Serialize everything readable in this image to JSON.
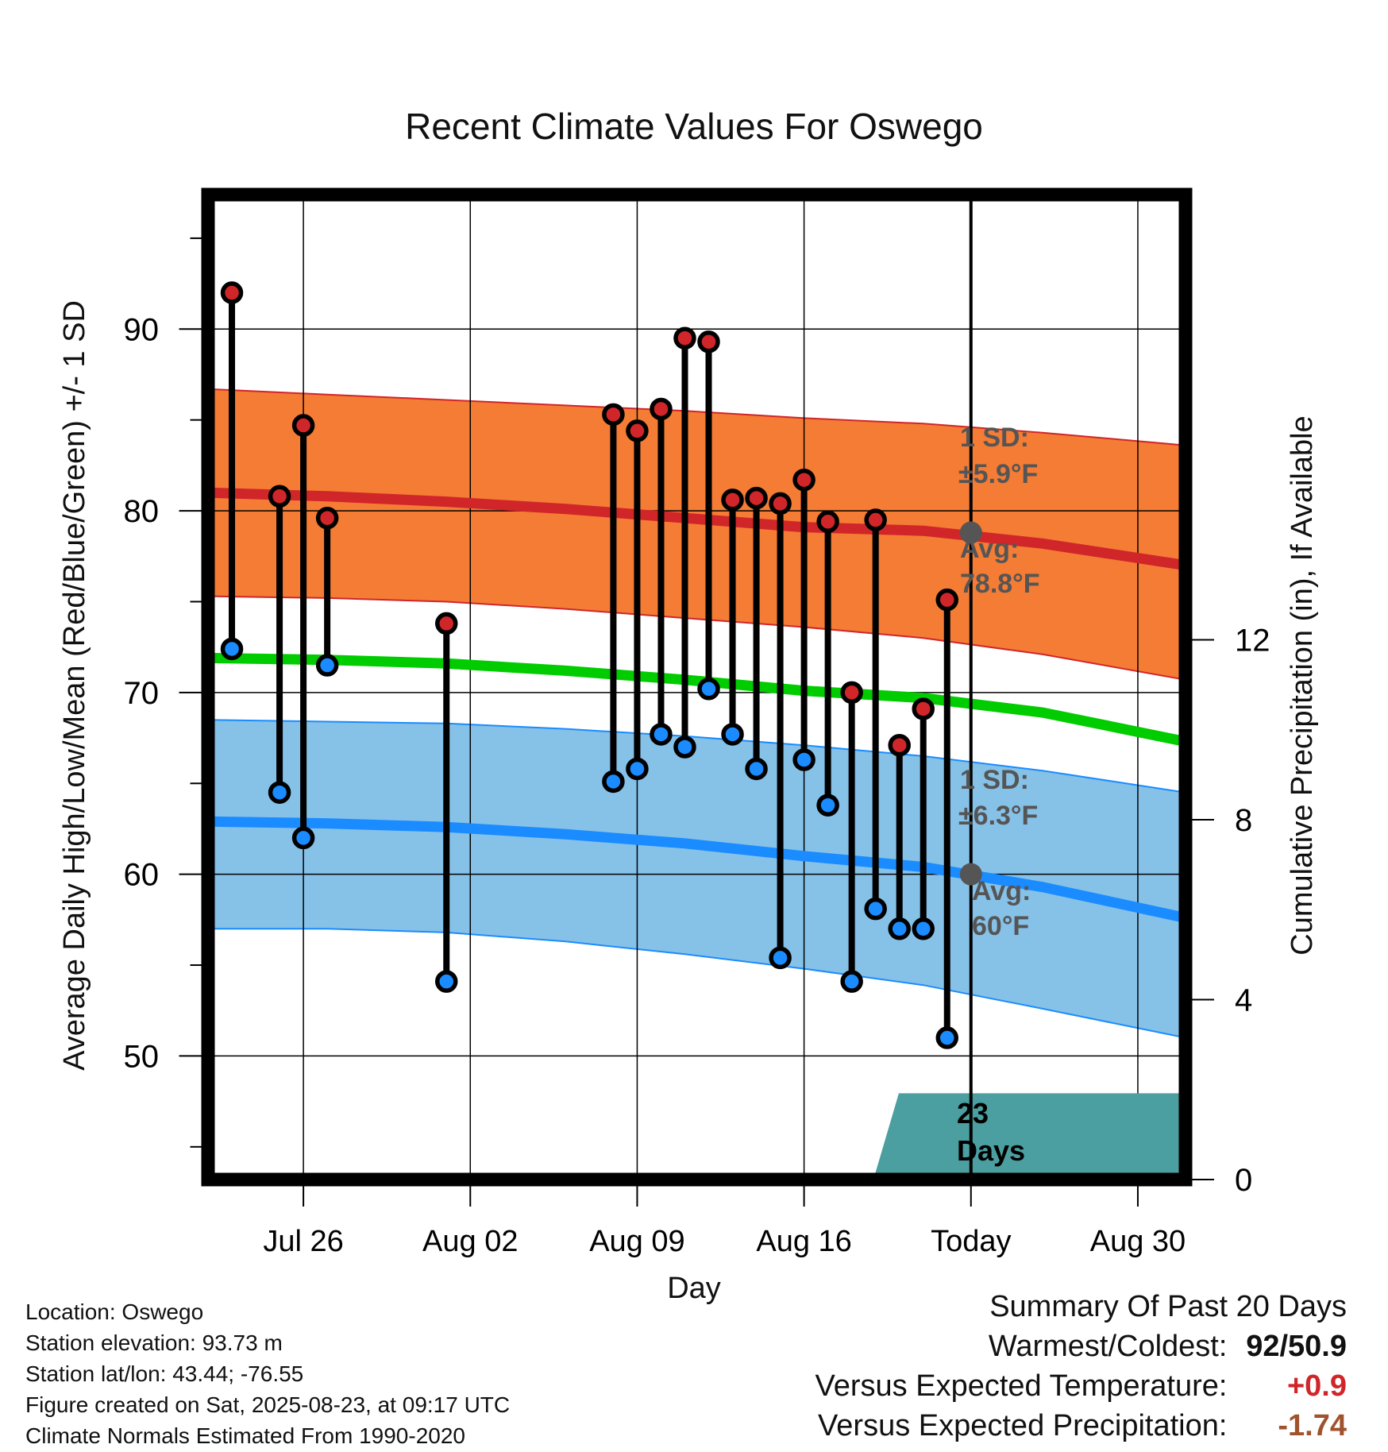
{
  "chart_data": {
    "type": "line",
    "title": "Recent Climate Values For Oswego",
    "xlabel": "Day",
    "ylabel": "Average Daily High/Low/Mean (Red/Blue/Green) +/- 1 SD",
    "y2label": "Cumulative Precipitation (in), If Available",
    "ylim": [
      43.2,
      97.4
    ],
    "y_ticks": [
      50,
      60,
      70,
      80,
      90
    ],
    "y2lim": [
      0,
      21.9
    ],
    "y2_ticks": [
      0,
      4,
      8,
      12
    ],
    "xlim": [
      "2025-07-22",
      "2025-09-01"
    ],
    "x_ticks": [
      {
        "date": "2025-07-26",
        "label": "Jul 26"
      },
      {
        "date": "2025-08-02",
        "label": "Aug 02"
      },
      {
        "date": "2025-08-09",
        "label": "Aug 09"
      },
      {
        "date": "2025-08-16",
        "label": "Aug 16"
      },
      {
        "date": "2025-08-23",
        "label": "Today"
      },
      {
        "date": "2025-08-30",
        "label": "Aug 30"
      }
    ],
    "grid": true,
    "today_date": "2025-08-23",
    "today_label": "23 Days",
    "colors": {
      "high_band": "#f47c34",
      "low_band": "#86c1e8",
      "normal_high": "#d0262a",
      "normal_low": "#1a8cff",
      "normal_mean": "#00cc00",
      "precip": "#4b9fa0",
      "high_marker": "#d0262a",
      "low_marker": "#1a8cff",
      "today_marker": "#555555",
      "annotation": "#555555"
    },
    "normals": {
      "dates": [
        "2025-07-22",
        "2025-07-27",
        "2025-08-01",
        "2025-08-06",
        "2025-08-11",
        "2025-08-16",
        "2025-08-21",
        "2025-08-26",
        "2025-09-01"
      ],
      "high_mean": [
        81.0,
        80.8,
        80.5,
        80.1,
        79.6,
        79.1,
        78.9,
        78.2,
        77.0
      ],
      "high_upper": [
        86.7,
        86.4,
        86.1,
        85.8,
        85.5,
        85.1,
        84.8,
        84.3,
        83.6
      ],
      "high_lower": [
        75.3,
        75.2,
        75.0,
        74.6,
        74.1,
        73.6,
        73.0,
        72.1,
        70.7
      ],
      "low_mean": [
        62.9,
        62.8,
        62.6,
        62.2,
        61.7,
        61.0,
        60.4,
        59.3,
        57.6
      ],
      "low_upper": [
        68.5,
        68.4,
        68.3,
        68.0,
        67.6,
        67.1,
        66.5,
        65.7,
        64.5
      ],
      "low_lower": [
        57.0,
        57.0,
        56.8,
        56.3,
        55.6,
        54.8,
        53.9,
        52.6,
        51.0
      ],
      "mean": [
        71.9,
        71.8,
        71.6,
        71.2,
        70.7,
        70.1,
        69.7,
        68.9,
        67.3
      ]
    },
    "series": [
      {
        "name": "High",
        "x": [
          "2025-07-23",
          "2025-07-25",
          "2025-07-26",
          "2025-07-27",
          "2025-08-01",
          "2025-08-08",
          "2025-08-09",
          "2025-08-10",
          "2025-08-11",
          "2025-08-12",
          "2025-08-13",
          "2025-08-14",
          "2025-08-15",
          "2025-08-16",
          "2025-08-17",
          "2025-08-18",
          "2025-08-19",
          "2025-08-20",
          "2025-08-21",
          "2025-08-22"
        ],
        "values": [
          92.0,
          80.8,
          84.7,
          79.6,
          73.8,
          85.3,
          84.4,
          85.6,
          89.5,
          89.3,
          80.6,
          80.7,
          80.4,
          81.7,
          79.4,
          70.0,
          79.5,
          67.1,
          69.1,
          75.1
        ]
      },
      {
        "name": "Low",
        "x": [
          "2025-07-23",
          "2025-07-25",
          "2025-07-26",
          "2025-07-27",
          "2025-08-01",
          "2025-08-08",
          "2025-08-09",
          "2025-08-10",
          "2025-08-11",
          "2025-08-12",
          "2025-08-13",
          "2025-08-14",
          "2025-08-15",
          "2025-08-16",
          "2025-08-17",
          "2025-08-18",
          "2025-08-19",
          "2025-08-20",
          "2025-08-21",
          "2025-08-22"
        ],
        "values": [
          72.4,
          64.5,
          62.0,
          71.5,
          54.1,
          65.1,
          65.8,
          67.7,
          67.0,
          70.2,
          67.7,
          65.8,
          55.4,
          66.3,
          63.8,
          54.1,
          58.1,
          57.0,
          57.0,
          51.0
        ]
      }
    ],
    "precip": {
      "x": [
        "2025-07-22",
        "2025-07-29",
        "2025-08-19",
        "2025-08-20",
        "2025-09-01"
      ],
      "values": [
        0.0,
        0.05,
        0.1,
        1.9,
        1.9
      ]
    },
    "annotations": {
      "high_sd_label": "1 SD:",
      "high_sd_value": "±5.9°F",
      "high_avg_label": "Avg:",
      "high_avg_value": "78.8°F",
      "high_avg": 78.8,
      "low_sd_label": "1 SD:",
      "low_sd_value": "±6.3°F",
      "low_avg_label": "Avg:",
      "low_avg_value": "60°F",
      "low_avg": 60.0
    }
  },
  "footer": {
    "location": "Location: Oswego",
    "elevation": "Station elevation: 93.73 m",
    "latlon": "Station lat/lon: 43.44; -76.55",
    "created": "Figure created on Sat, 2025-08-23, at 09:17 UTC",
    "normals": "Climate Normals Estimated From 1990-2020"
  },
  "summary": {
    "title": "Summary Of Past 20 Days",
    "warm_cold_label": "Warmest/Coldest:",
    "warm_cold_value": "92/50.9",
    "temp_label": "Versus Expected Temperature:",
    "temp_value": "+0.9",
    "temp_color": "#d0262a",
    "precip_label": "Versus Expected Precipitation:",
    "precip_value": "-1.74",
    "precip_color": "#a0522d"
  }
}
